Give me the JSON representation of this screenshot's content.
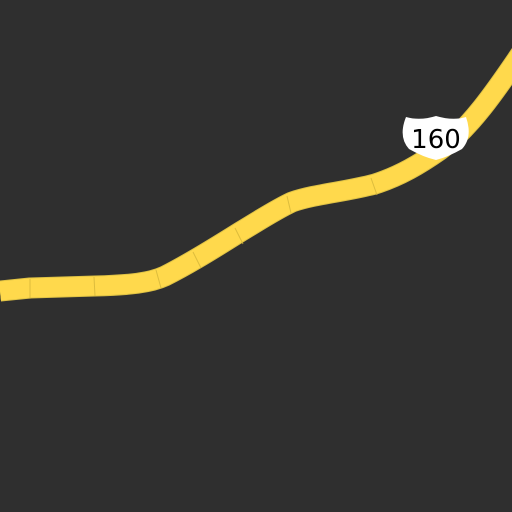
{
  "map": {
    "background_color": "#2f2f2f",
    "road_color": "#ffd94c",
    "road_edge_color": "#e0c345",
    "route": {
      "shield_icon": "us-highway-shield-icon",
      "number": "160",
      "shield_fill": "#ffffff",
      "shield_text_color": "#000000"
    }
  }
}
